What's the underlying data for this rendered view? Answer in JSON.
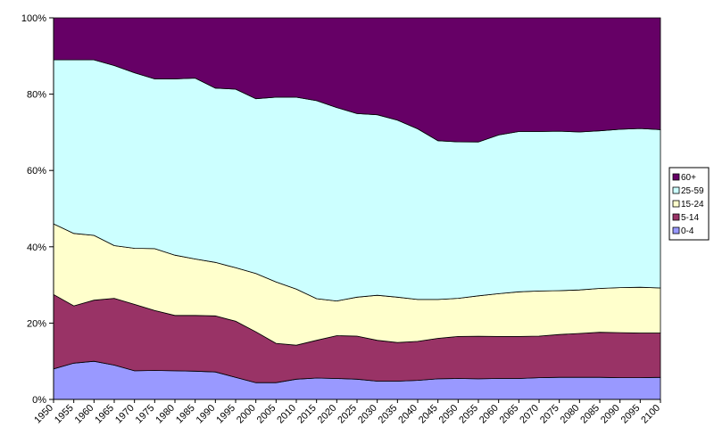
{
  "chart_data": {
    "type": "area",
    "stacking": "percent",
    "title": "",
    "xlabel": "",
    "ylabel": "",
    "ylim": [
      0,
      100
    ],
    "y_ticks": [
      "0%",
      "20%",
      "40%",
      "60%",
      "80%",
      "100%"
    ],
    "x": [
      "1950",
      "1955",
      "1960",
      "1965",
      "1970",
      "1975",
      "1980",
      "1985",
      "1990",
      "1995",
      "2000",
      "2005",
      "2010",
      "2015",
      "2020",
      "2025",
      "2030",
      "2035",
      "2040",
      "2045",
      "2050",
      "2055",
      "2060",
      "2065",
      "2070",
      "2075",
      "2080",
      "2085",
      "2090",
      "2095",
      "2100"
    ],
    "legend_position": "right",
    "grid": false,
    "series": [
      {
        "name": "0-4",
        "color": "#9999ff",
        "values": [
          8,
          9.5,
          10,
          9,
          7.5,
          7.6,
          7.5,
          7.4,
          7.2,
          5.8,
          4.4,
          4.4,
          5.3,
          5.6,
          5.5,
          5.3,
          4.8,
          4.8,
          5,
          5.4,
          5.5,
          5.4,
          5.5,
          5.5,
          5.7,
          5.8,
          5.8,
          5.8,
          5.7,
          5.7,
          5.8
        ]
      },
      {
        "name": "5-14",
        "color": "#993366",
        "values": [
          19.5,
          15,
          16,
          17.5,
          17.4,
          15.7,
          14.5,
          14.6,
          14.7,
          14.7,
          13.3,
          10.3,
          8.9,
          9.9,
          11.2,
          11.3,
          10.7,
          10.1,
          10.2,
          10.6,
          11,
          11.2,
          11,
          11,
          10.9,
          11.2,
          11.5,
          11.8,
          11.8,
          11.7,
          11.6
        ]
      },
      {
        "name": "15-24",
        "color": "#ffffcc",
        "values": [
          18.5,
          19,
          17,
          13.8,
          14.7,
          16.2,
          15.8,
          14.8,
          14,
          14,
          15.3,
          16.1,
          14.7,
          10.9,
          9.1,
          10.2,
          11.8,
          11.9,
          11,
          10.2,
          10,
          10.6,
          11.2,
          11.7,
          11.8,
          11.5,
          11.4,
          11.5,
          11.8,
          12,
          11.8
        ]
      },
      {
        "name": "25-59",
        "color": "#ccffff",
        "values": [
          43,
          45.5,
          46,
          47.2,
          46,
          44.5,
          46.2,
          47.4,
          45.7,
          46.8,
          45.8,
          48.4,
          50.3,
          51.9,
          50.7,
          48.1,
          47.3,
          46.4,
          44.7,
          41.6,
          41,
          40.4,
          41.6,
          42,
          41.8,
          41.8,
          41.4,
          41.3,
          41.5,
          41.6,
          41.5
        ]
      },
      {
        "name": "60+",
        "color": "#660066",
        "values": [
          11,
          11,
          11,
          12.5,
          14.4,
          16,
          16,
          15.8,
          18.4,
          18.7,
          21.2,
          20.8,
          20.8,
          21.7,
          23.5,
          25.1,
          25.4,
          26.8,
          29.1,
          32.2,
          32.5,
          32.6,
          30.7,
          29.8,
          29.8,
          29.7,
          29.9,
          29.6,
          29.2,
          29,
          29.3
        ]
      }
    ]
  }
}
